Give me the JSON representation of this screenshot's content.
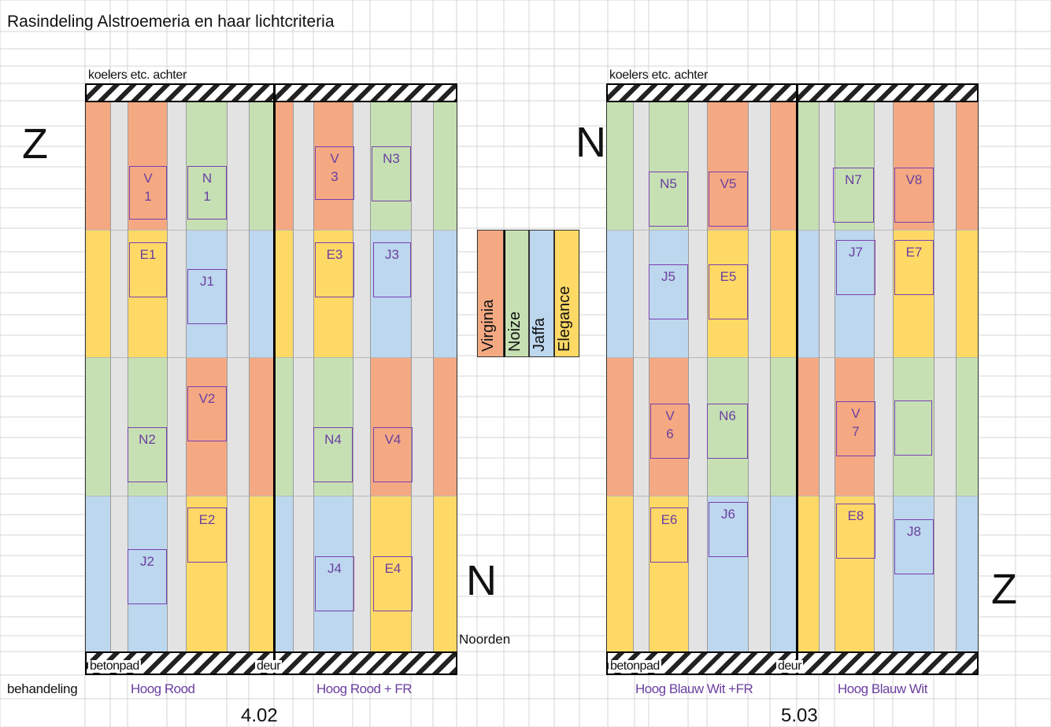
{
  "title": "Rasindeling Alstroemeria en haar lichtcriteria",
  "colors": {
    "Virginia": "#f4a983",
    "Noize": "#c6e0b4",
    "Jaffa": "#bdd7ee",
    "Elegance": "#ffd966",
    "path": "#e3e3e3",
    "plot_border": "#7a3fb0",
    "label_purple": "#6a3fa0"
  },
  "legend": [
    "Virginia",
    "Noize",
    "Jaffa",
    "Elegance"
  ],
  "compass": {
    "left_top": "Z",
    "center_top": "N",
    "center_bottom": "N",
    "right_bottom": "Z",
    "noorden": "Noorden"
  },
  "row_label": "behandeling",
  "greenhouses": [
    {
      "name": "4.02",
      "top_label": "koelers etc. achter",
      "bottom_left_label": "betonpad",
      "bottom_mid_label": "deur",
      "treatments": [
        "Hoog Rood",
        "Hoog Rood + FR"
      ],
      "plots": [
        {
          "label": "V\n1"
        },
        {
          "label": "N\n1"
        },
        {
          "label": "V\n3"
        },
        {
          "label": "N3"
        },
        {
          "label": "E1"
        },
        {
          "label": "J1"
        },
        {
          "label": "E3"
        },
        {
          "label": "J3"
        },
        {
          "label": "N2"
        },
        {
          "label": "V2"
        },
        {
          "label": "N4"
        },
        {
          "label": "V4"
        },
        {
          "label": "J2"
        },
        {
          "label": "E2"
        },
        {
          "label": "J4"
        },
        {
          "label": "E4"
        }
      ]
    },
    {
      "name": "5.03",
      "top_label": "koelers etc. achter",
      "bottom_left_label": "betonpad",
      "bottom_mid_label": "deur",
      "treatments": [
        "Hoog Blauw Wit +FR",
        "Hoog Blauw Wit"
      ],
      "plots": [
        {
          "label": "N5"
        },
        {
          "label": "V5"
        },
        {
          "label": "N7"
        },
        {
          "label": "V8"
        },
        {
          "label": "J5"
        },
        {
          "label": "E5"
        },
        {
          "label": "J7"
        },
        {
          "label": "E7"
        },
        {
          "label": "V\n6"
        },
        {
          "label": "N6"
        },
        {
          "label": "V\n7"
        },
        {
          "label": ""
        },
        {
          "label": "E6"
        },
        {
          "label": "J6"
        },
        {
          "label": "E8"
        },
        {
          "label": "J8"
        }
      ]
    }
  ]
}
